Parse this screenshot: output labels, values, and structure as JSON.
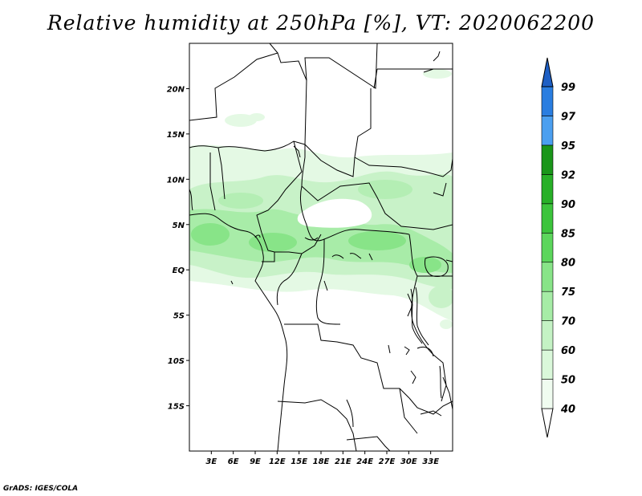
{
  "title": "Relative humidity at 250hPa [%], VT: 2020062200",
  "credit": "GrADS: IGES/COLA",
  "map": {
    "lon_range": [
      0,
      36
    ],
    "lat_range": [
      -20,
      25
    ],
    "lat_ticks": [
      {
        "value": 20,
        "label": "20N"
      },
      {
        "value": 15,
        "label": "15N"
      },
      {
        "value": 10,
        "label": "10N"
      },
      {
        "value": 5,
        "label": "5N"
      },
      {
        "value": 0,
        "label": "EQ"
      },
      {
        "value": -5,
        "label": "5S"
      },
      {
        "value": -10,
        "label": "10S"
      },
      {
        "value": -15,
        "label": "15S"
      }
    ],
    "lon_ticks": [
      {
        "value": 3,
        "label": "3E"
      },
      {
        "value": 6,
        "label": "6E"
      },
      {
        "value": 9,
        "label": "9E"
      },
      {
        "value": 12,
        "label": "12E"
      },
      {
        "value": 15,
        "label": "15E"
      },
      {
        "value": 18,
        "label": "18E"
      },
      {
        "value": 21,
        "label": "21E"
      },
      {
        "value": 24,
        "label": "24E"
      },
      {
        "value": 27,
        "label": "27E"
      },
      {
        "value": 30,
        "label": "30E"
      },
      {
        "value": 33,
        "label": "33E"
      }
    ]
  },
  "colorbar": {
    "levels": [
      {
        "label": "40",
        "color": "#f0fcf0"
      },
      {
        "label": "50",
        "color": "#daf8da"
      },
      {
        "label": "60",
        "color": "#c4f2c4"
      },
      {
        "label": "70",
        "color": "#a6eca6"
      },
      {
        "label": "75",
        "color": "#88e488"
      },
      {
        "label": "80",
        "color": "#5cd65c"
      },
      {
        "label": "85",
        "color": "#3cc43c"
      },
      {
        "label": "90",
        "color": "#28b028"
      },
      {
        "label": "92",
        "color": "#1a961a"
      },
      {
        "label": "95",
        "color": "#4b9ff0"
      },
      {
        "label": "97",
        "color": "#2a7de0"
      },
      {
        "label": "99",
        "color": "#1e5fc4"
      }
    ],
    "below_color": "#ffffff",
    "above_color": "#1e5fc4"
  }
}
